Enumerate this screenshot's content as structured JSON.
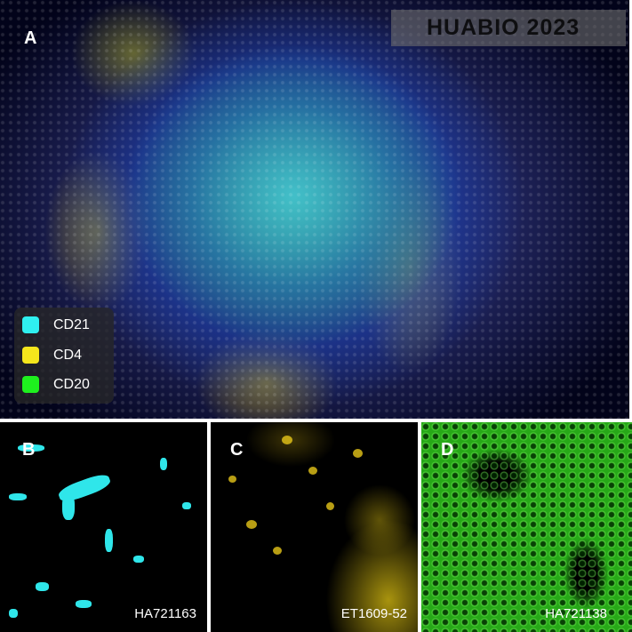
{
  "panels": {
    "A": {
      "label": "A",
      "watermark": "HUABIO 2023"
    },
    "B": {
      "label": "B",
      "antibody": "HA721163",
      "channel_color": "#2fe6ea"
    },
    "C": {
      "label": "C",
      "antibody": "ET1609-52",
      "channel_color": "#e6c619"
    },
    "D": {
      "label": "D",
      "antibody": "HA721138",
      "channel_color": "#2fd41c"
    }
  },
  "legend": [
    {
      "label": "CD21",
      "color": "#2ff0f0"
    },
    {
      "label": "CD4",
      "color": "#f5e61c"
    },
    {
      "label": "CD20",
      "color": "#1ef01e"
    }
  ]
}
